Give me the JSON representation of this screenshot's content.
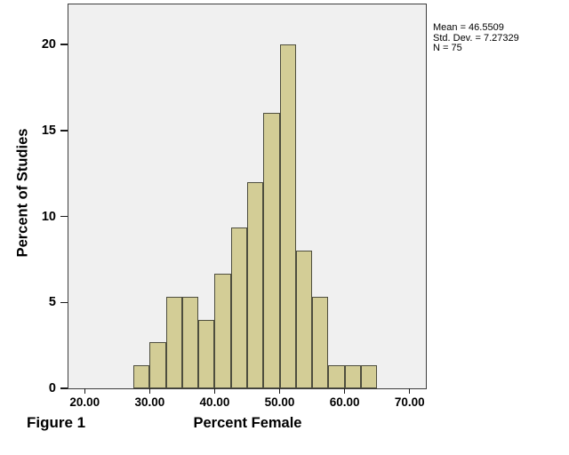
{
  "figure": {
    "caption": "Figure 1"
  },
  "chart_data": {
    "type": "bar",
    "subtype": "histogram",
    "title": "",
    "xlabel": "Percent Female",
    "ylabel": "Percent of Studies",
    "xlim": [
      17.5,
      72.5
    ],
    "ylim": [
      0,
      22.33
    ],
    "grid": false,
    "legend_position": "none",
    "bin_width": 2.5,
    "bins": [
      {
        "start": 27.5,
        "end": 30.0,
        "percent": 1.333
      },
      {
        "start": 30.0,
        "end": 32.5,
        "percent": 2.667
      },
      {
        "start": 32.5,
        "end": 35.0,
        "percent": 5.333
      },
      {
        "start": 35.0,
        "end": 37.5,
        "percent": 5.333
      },
      {
        "start": 37.5,
        "end": 40.0,
        "percent": 4.0
      },
      {
        "start": 40.0,
        "end": 42.5,
        "percent": 6.667
      },
      {
        "start": 42.5,
        "end": 45.0,
        "percent": 9.333
      },
      {
        "start": 45.0,
        "end": 47.5,
        "percent": 12.0
      },
      {
        "start": 47.5,
        "end": 50.0,
        "percent": 16.0
      },
      {
        "start": 50.0,
        "end": 52.5,
        "percent": 20.0
      },
      {
        "start": 52.5,
        "end": 55.0,
        "percent": 8.0
      },
      {
        "start": 55.0,
        "end": 57.5,
        "percent": 5.333
      },
      {
        "start": 57.5,
        "end": 60.0,
        "percent": 1.333
      },
      {
        "start": 60.0,
        "end": 62.5,
        "percent": 1.333
      },
      {
        "start": 62.5,
        "end": 65.0,
        "percent": 1.333
      }
    ],
    "x_ticks": [
      {
        "value": 20,
        "label": "20.00"
      },
      {
        "value": 30,
        "label": "30.00"
      },
      {
        "value": 40,
        "label": "40.00"
      },
      {
        "value": 50,
        "label": "50.00"
      },
      {
        "value": 60,
        "label": "60.00"
      },
      {
        "value": 70,
        "label": "70.00"
      }
    ],
    "y_ticks": [
      {
        "value": 0,
        "label": "0"
      },
      {
        "value": 5,
        "label": "5"
      },
      {
        "value": 10,
        "label": "10"
      },
      {
        "value": 15,
        "label": "15"
      },
      {
        "value": 20,
        "label": "20"
      }
    ],
    "annotation": {
      "lines": [
        "Mean = 46.5509",
        "Std. Dev. = 7.27329",
        "N = 75"
      ]
    },
    "colors": {
      "bar_fill": "#d3cd96",
      "bar_border": "#4e4e3e",
      "plot_bg": "#f0f0f0",
      "frame": "#3c3c3c",
      "text": "#000000"
    }
  }
}
